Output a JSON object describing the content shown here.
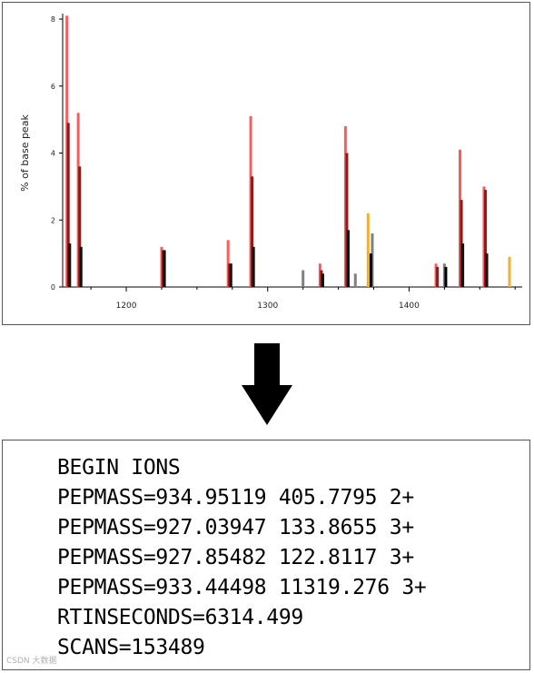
{
  "chart_data": {
    "type": "bar",
    "ylabel": "% of base peak",
    "xlim": [
      1155,
      1480
    ],
    "ylim": [
      0,
      8
    ],
    "x_ticks": [
      "1200",
      "1300",
      "1400"
    ],
    "y_ticks": [
      "0",
      "2",
      "4",
      "6",
      "8"
    ],
    "series": [
      {
        "color": "#ff5a5a",
        "x": [
          1158,
          1166,
          1225,
          1272,
          1288,
          1337,
          1355,
          1419,
          1436,
          1453
        ],
        "values": [
          8.1,
          5.2,
          1.2,
          1.4,
          5.1,
          0.7,
          4.8,
          0.7,
          4.1,
          3.0
        ]
      },
      {
        "color": "#8b1a1a",
        "x": [
          1159,
          1167,
          1226,
          1273,
          1289,
          1338,
          1356,
          1420,
          1437,
          1454
        ],
        "values": [
          4.9,
          3.6,
          1.1,
          0.7,
          3.3,
          0.5,
          4.0,
          0.6,
          2.6,
          2.9
        ]
      },
      {
        "color": "#111111",
        "x": [
          1160,
          1168,
          1227,
          1274,
          1290,
          1339,
          1357,
          1438,
          1455
        ],
        "values": [
          1.3,
          1.2,
          1.1,
          0.7,
          1.2,
          0.4,
          1.7,
          1.3,
          1.0
        ]
      },
      {
        "color": "#808080",
        "x": [
          1325,
          1362,
          1374,
          1425
        ],
        "values": [
          0.5,
          0.4,
          1.6,
          0.7
        ]
      },
      {
        "color": "#f0b030",
        "x": [
          1371,
          1471
        ],
        "values": [
          2.2,
          0.9
        ]
      },
      {
        "color": "#000000",
        "x": [
          1373,
          1426
        ],
        "values": [
          1.0,
          0.6
        ]
      }
    ]
  },
  "mgf": {
    "lines": [
      "BEGIN IONS",
      "PEPMASS=934.95119 405.7795 2+",
      "PEPMASS=927.03947 133.8655 3+",
      "PEPMASS=927.85482 122.8117 3+",
      "PEPMASS=933.44498 11319.276 3+",
      "RTINSECONDS=6314.499",
      "SCANS=153489"
    ]
  },
  "arrow": {
    "icon": "down-arrow-icon",
    "color": "#000000"
  },
  "watermark": "CSDN 大数据"
}
